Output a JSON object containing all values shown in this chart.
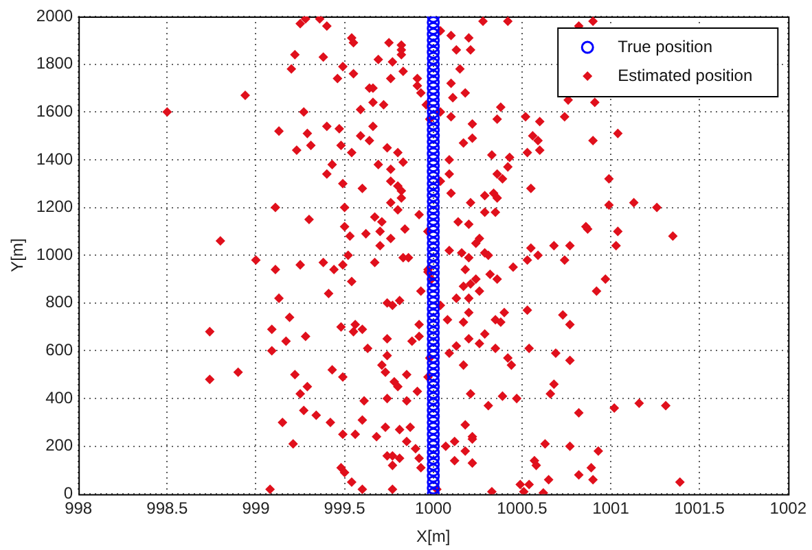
{
  "chart_data": {
    "type": "scatter",
    "xlabel": "X[m]",
    "ylabel": "Y[m]",
    "xlim": [
      998,
      1002
    ],
    "ylim": [
      0,
      2000
    ],
    "xticks": [
      998,
      998.5,
      999,
      999.5,
      1000,
      1000.5,
      1001,
      1001.5,
      1002
    ],
    "yticks": [
      0,
      200,
      400,
      600,
      800,
      1000,
      1200,
      1400,
      1600,
      1800,
      2000
    ],
    "grid": true,
    "legend": "top right",
    "line_style": "dotted",
    "series": [
      {
        "name": "True position",
        "color": "#0000ff",
        "marker": "circle",
        "x": [
          1000,
          1000,
          1000,
          1000,
          1000,
          1000,
          1000,
          1000,
          1000,
          1000,
          1000,
          1000,
          1000,
          1000,
          1000,
          1000,
          1000,
          1000,
          1000,
          1000,
          1000,
          1000,
          1000,
          1000,
          1000,
          1000,
          1000,
          1000,
          1000,
          1000,
          1000,
          1000,
          1000,
          1000,
          1000,
          1000,
          1000,
          1000,
          1000,
          1000,
          1000,
          1000,
          1000,
          1000,
          1000,
          1000,
          1000,
          1000,
          1000,
          1000,
          1000,
          1000,
          1000,
          1000,
          1000,
          1000,
          1000,
          1000,
          1000,
          1000,
          1000,
          1000,
          1000,
          1000,
          1000,
          1000,
          1000,
          1000,
          1000,
          1000,
          1000,
          1000,
          1000,
          1000,
          1000,
          1000,
          1000,
          1000,
          1000,
          1000,
          1000
        ],
        "values": [
          0,
          25,
          50,
          75,
          100,
          125,
          150,
          175,
          200,
          225,
          250,
          275,
          300,
          325,
          350,
          375,
          400,
          425,
          450,
          475,
          500,
          525,
          550,
          575,
          600,
          625,
          650,
          675,
          700,
          725,
          750,
          775,
          800,
          825,
          850,
          875,
          900,
          925,
          950,
          975,
          1000,
          1025,
          1050,
          1075,
          1100,
          1125,
          1150,
          1175,
          1200,
          1225,
          1250,
          1275,
          1300,
          1325,
          1350,
          1375,
          1400,
          1425,
          1450,
          1475,
          1500,
          1525,
          1550,
          1575,
          1600,
          1625,
          1650,
          1675,
          1700,
          1725,
          1750,
          1775,
          1800,
          1825,
          1850,
          1875,
          1900,
          1925,
          1950,
          1975,
          2000
        ]
      },
      {
        "name": "Estimated position",
        "color": "#e0101c",
        "marker": "diamond",
        "x": [
          999.25,
          999.28,
          999.36,
          999.4,
          999.54,
          999.55,
          999.75,
          999.82,
          999.82,
          999.82,
          999.22,
          999.38,
          999.69,
          999.77,
          999.2,
          999.49,
          999.55,
          999.46,
          999.76,
          999.83,
          999.91,
          999.91,
          999.93,
          999.64,
          999.66,
          999.66,
          999.72,
          999.59,
          999.96,
          998.94,
          998.5,
          999.27,
          999.98,
          999.13,
          999.29,
          999.4,
          999.47,
          999.66,
          999.59,
          999.64,
          999.23,
          999.31,
          999.48,
          999.54,
          999.74,
          999.8,
          999.43,
          999.4,
          999.69,
          999.76,
          999.83,
          999.49,
          999.6,
          999.76,
          999.8,
          999.82,
          999.82,
          999.76,
          999.8,
          999.11,
          999.5,
          999.67,
          999.71,
          999.3,
          999.5,
          999.92,
          999.97,
          999.53,
          999.62,
          999.7,
          999.76,
          999.84,
          999.7,
          998.8,
          999.52,
          999.83,
          999.38,
          999.0,
          999.11,
          999.25,
          999.44,
          999.49,
          999.67,
          999.86,
          999.97,
          999.54,
          999.41,
          999.13,
          999.74,
          999.77,
          999.81,
          999.93,
          999.19,
          999.56,
          999.55,
          999.6,
          999.48,
          999.28,
          999.09,
          998.74,
          999.17,
          999.74,
          999.88,
          999.92,
          999.92,
          999.09,
          999.63,
          999.74,
          999.71,
          999.98,
          998.9,
          998.74,
          999.22,
          999.43,
          999.49,
          999.73,
          999.85,
          999.78,
          999.8,
          999.29,
          999.25,
          999.91,
          999.61,
          999.74,
          999.85,
          999.27,
          999.34,
          999.42,
          999.15,
          999.6,
          999.73,
          999.81,
          999.87,
          999.49,
          999.56,
          999.68,
          999.85,
          999.21,
          999.74,
          999.77,
          999.81,
          999.9,
          999.92,
          999.93,
          999.77,
          999.48,
          999.5,
          999.54,
          999.6,
          999.08,
          999.77,
          1000.04,
          1000.1,
          1000.2,
          1000.21,
          1000.13,
          1000.28,
          1000.42,
          1000.82,
          1000.9,
          1000.15,
          1000.1,
          1000.18,
          1000.11,
          1000.04,
          1000.1,
          1000.22,
          1000.36,
          1000.38,
          1000.52,
          1000.6,
          1000.74,
          1000.76,
          1000.91,
          1000.56,
          1000.59,
          1001.04,
          1000.9,
          1000.17,
          1000.22,
          1000.53,
          1000.6,
          1000.33,
          1000.43,
          1000.09,
          1000.09,
          1000.04,
          1000.36,
          1000.39,
          1000.42,
          1000.1,
          1000.29,
          1000.34,
          1000.36,
          1000.55,
          1000.99,
          1000.99,
          1001.13,
          1001.26,
          1000.21,
          1000.14,
          1000.2,
          1000.29,
          1000.35,
          999.97,
          1000.86,
          1000.87,
          1001.04,
          1001.35,
          1000.26,
          1000.24,
          1000.68,
          1000.77,
          1001.03,
          1000.09,
          1000.16,
          1000.2,
          1000.29,
          1000.55,
          1000.59,
          1000.53,
          1000.31,
          1000.74,
          1000.45,
          1000.18,
          999.97,
          999.99,
          1000.97,
          1000.92,
          1000.17,
          1000.21,
          1000.24,
          1000.32,
          1000.36,
          1000.26,
          1000.2,
          1000.13,
          1000.04,
          1000.53,
          1000.73,
          1000.77,
          1000.4,
          1000.35,
          1000.38,
          1000.2,
          1000.17,
          1000.08,
          1000.29,
          1000.2,
          1000.26,
          1000.13,
          1000.09,
          1000.35,
          1000.42,
          1000.44,
          1000.54,
          1000.69,
          1000.77,
          1000.17,
          999.97,
          1000.68,
          1000.66,
          1000.21,
          1000.39,
          1000.47,
          1000.31,
          1000.82,
          1001.02,
          1001.16,
          1001.31,
          1000.18,
          1000.22,
          1000.22,
          1000.12,
          1000.07,
          1000.18,
          1000.12,
          1000.22,
          1000.63,
          1000.77,
          1000.93,
          1000.57,
          1000.58,
          1000.89,
          1000.82,
          1000.9,
          1000.65,
          1000.49,
          1000.54,
          1000.33,
          1000.51,
          1000.62,
          1000.02,
          1001.39
        ],
        "values": [
          1970,
          1990,
          1990,
          1960,
          1910,
          1890,
          1890,
          1880,
          1860,
          1840,
          1840,
          1830,
          1820,
          1810,
          1780,
          1790,
          1760,
          1740,
          1740,
          1770,
          1740,
          1710,
          1680,
          1700,
          1700,
          1640,
          1630,
          1610,
          1630,
          1670,
          1600,
          1600,
          1570,
          1520,
          1510,
          1540,
          1530,
          1540,
          1500,
          1480,
          1440,
          1460,
          1460,
          1430,
          1450,
          1430,
          1380,
          1340,
          1380,
          1360,
          1390,
          1300,
          1280,
          1310,
          1290,
          1270,
          1240,
          1220,
          1190,
          1200,
          1200,
          1160,
          1140,
          1150,
          1120,
          1170,
          1100,
          1080,
          1090,
          1100,
          1070,
          1110,
          1040,
          1060,
          1000,
          990,
          970,
          980,
          940,
          960,
          940,
          960,
          970,
          990,
          940,
          890,
          840,
          820,
          800,
          790,
          810,
          850,
          740,
          710,
          680,
          690,
          700,
          660,
          690,
          680,
          640,
          650,
          640,
          660,
          710,
          600,
          610,
          580,
          540,
          570,
          510,
          480,
          500,
          520,
          490,
          510,
          500,
          470,
          450,
          450,
          420,
          430,
          390,
          400,
          390,
          350,
          330,
          300,
          300,
          310,
          280,
          270,
          280,
          250,
          250,
          240,
          220,
          210,
          160,
          160,
          150,
          190,
          150,
          110,
          120,
          110,
          90,
          50,
          20,
          20,
          20,
          1940,
          1920,
          1910,
          1860,
          1860,
          1980,
          1980,
          1960,
          1980,
          1780,
          1720,
          1680,
          1660,
          1600,
          1580,
          1550,
          1570,
          1620,
          1580,
          1560,
          1580,
          1650,
          1640,
          1500,
          1480,
          1510,
          1480,
          1470,
          1490,
          1430,
          1440,
          1420,
          1410,
          1400,
          1340,
          1310,
          1340,
          1320,
          1370,
          1260,
          1250,
          1260,
          1240,
          1280,
          1320,
          1210,
          1220,
          1200,
          1220,
          1140,
          1130,
          1180,
          1180,
          1100,
          1120,
          1110,
          1100,
          1080,
          1070,
          1050,
          1040,
          1040,
          1040,
          1020,
          1010,
          990,
          1010,
          1030,
          1000,
          980,
          1000,
          980,
          950,
          940,
          930,
          900,
          900,
          850,
          870,
          880,
          900,
          920,
          900,
          850,
          820,
          820,
          790,
          770,
          750,
          710,
          760,
          730,
          720,
          760,
          720,
          730,
          670,
          650,
          630,
          620,
          590,
          610,
          570,
          540,
          610,
          590,
          560,
          540,
          490,
          460,
          420,
          420,
          410,
          400,
          370,
          340,
          360,
          380,
          370,
          290,
          240,
          230,
          220,
          200,
          180,
          140,
          130,
          210,
          200,
          180,
          140,
          120,
          110,
          80,
          60,
          60,
          40,
          40,
          10,
          10,
          5,
          20,
          50
        ]
      }
    ]
  }
}
